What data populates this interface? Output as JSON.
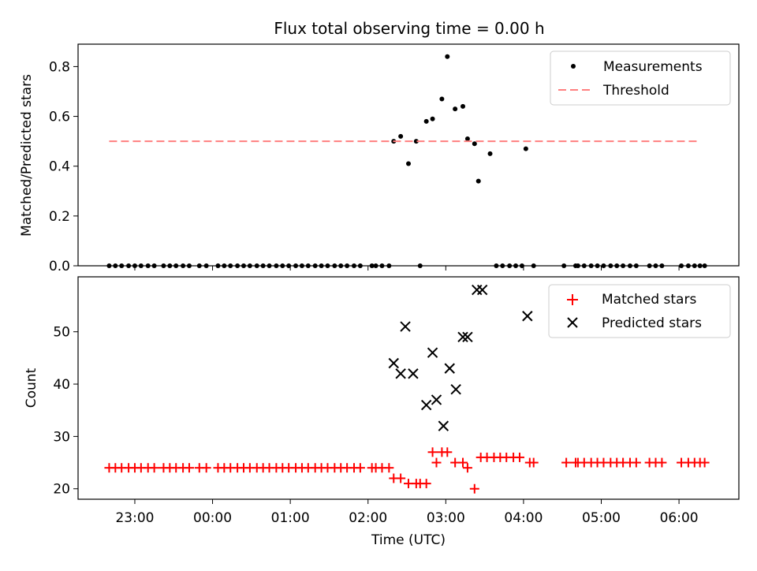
{
  "chart_data": {
    "title": "Flux total observing time = 0.00 h",
    "xlabel": "Time (UTC)",
    "x_tick_labels": [
      "23:00",
      "00:00",
      "01:00",
      "02:00",
      "03:00",
      "04:00",
      "05:00",
      "06:00"
    ],
    "x_tick_times_h": [
      23,
      24,
      25,
      26,
      27,
      28,
      29,
      30
    ],
    "xlim_h": [
      22.27,
      30.77
    ],
    "panels": [
      {
        "type": "scatter",
        "ylabel": "Matched/Predicted stars",
        "ylim": [
          0,
          0.89
        ],
        "y_ticks": [
          0.0,
          0.2,
          0.4,
          0.6,
          0.8
        ],
        "y_tick_labels": [
          "0.0",
          "0.2",
          "0.4",
          "0.6",
          "0.8"
        ],
        "legend": {
          "position": "top-right",
          "entries": [
            "Measurements",
            "Threshold"
          ]
        },
        "threshold": {
          "name": "Threshold",
          "value": 0.5,
          "x_range_h": [
            22.67,
            30.27
          ],
          "color": "#ff7f7f"
        },
        "series": [
          {
            "name": "Measurements",
            "color": "#000000",
            "x_h": [
              22.67,
              22.75,
              22.83,
              22.92,
              23.0,
              23.08,
              23.17,
              23.25,
              23.37,
              23.45,
              23.53,
              23.62,
              23.7,
              23.83,
              23.92,
              24.07,
              24.15,
              24.23,
              24.32,
              24.4,
              24.48,
              24.57,
              24.65,
              24.73,
              24.82,
              24.9,
              24.98,
              25.07,
              25.15,
              25.23,
              25.32,
              25.4,
              25.48,
              25.57,
              25.65,
              25.73,
              25.82,
              25.9,
              26.05,
              26.1,
              26.18,
              26.27,
              26.33,
              26.42,
              26.52,
              26.62,
              26.67,
              26.75,
              26.83,
              26.95,
              27.02,
              27.12,
              27.22,
              27.28,
              27.37,
              27.42,
              27.57,
              27.65,
              27.73,
              27.82,
              27.9,
              27.98,
              28.03,
              28.13,
              28.52,
              28.67,
              28.7,
              28.78,
              28.87,
              28.95,
              29.03,
              29.12,
              29.2,
              29.28,
              29.37,
              29.45,
              29.62,
              29.7,
              29.78,
              30.03,
              30.12,
              30.2,
              30.27,
              30.33
            ],
            "y": [
              0.0,
              0.0,
              0.0,
              0.0,
              0.0,
              0.0,
              0.0,
              0.0,
              0.0,
              0.0,
              0.0,
              0.0,
              0.0,
              0.0,
              0.0,
              0.0,
              0.0,
              0.0,
              0.0,
              0.0,
              0.0,
              0.0,
              0.0,
              0.0,
              0.0,
              0.0,
              0.0,
              0.0,
              0.0,
              0.0,
              0.0,
              0.0,
              0.0,
              0.0,
              0.0,
              0.0,
              0.0,
              0.0,
              0.0,
              0.0,
              0.0,
              0.0,
              0.5,
              0.52,
              0.41,
              0.5,
              0.0,
              0.58,
              0.59,
              0.67,
              0.84,
              0.63,
              0.64,
              0.51,
              0.49,
              0.34,
              0.45,
              0.0,
              0.0,
              0.0,
              0.0,
              0.0,
              0.47,
              0.0,
              0.0,
              0.0,
              0.0,
              0.0,
              0.0,
              0.0,
              0.0,
              0.0,
              0.0,
              0.0,
              0.0,
              0.0,
              0.0,
              0.0,
              0.0,
              0.0,
              0.0,
              0.0,
              0.0,
              0.0
            ]
          }
        ]
      },
      {
        "type": "scatter",
        "ylabel": "Count",
        "ylim": [
          18,
          60.5
        ],
        "y_ticks": [
          20,
          30,
          40,
          50
        ],
        "y_tick_labels": [
          "20",
          "30",
          "40",
          "50"
        ],
        "legend": {
          "position": "top-right",
          "entries": [
            "Matched stars",
            "Predicted stars"
          ]
        },
        "series": [
          {
            "name": "Matched stars",
            "marker": "plus",
            "color": "#ff0000",
            "x_h": [
              22.67,
              22.75,
              22.83,
              22.92,
              23.0,
              23.08,
              23.17,
              23.25,
              23.37,
              23.45,
              23.53,
              23.62,
              23.7,
              23.83,
              23.92,
              24.07,
              24.15,
              24.23,
              24.32,
              24.4,
              24.48,
              24.57,
              24.65,
              24.73,
              24.82,
              24.9,
              24.98,
              25.07,
              25.15,
              25.23,
              25.32,
              25.4,
              25.48,
              25.57,
              25.65,
              25.73,
              25.82,
              25.9,
              26.05,
              26.1,
              26.18,
              26.27,
              26.33,
              26.42,
              26.52,
              26.62,
              26.67,
              26.75,
              26.83,
              26.88,
              26.95,
              27.02,
              27.12,
              27.22,
              27.28,
              27.37,
              27.45,
              27.53,
              27.62,
              27.7,
              27.78,
              27.87,
              27.95,
              28.08,
              28.13,
              28.55,
              28.67,
              28.7,
              28.78,
              28.87,
              28.95,
              29.03,
              29.12,
              29.2,
              29.28,
              29.37,
              29.45,
              29.62,
              29.7,
              29.78,
              30.03,
              30.12,
              30.2,
              30.27,
              30.33
            ],
            "y": [
              24,
              24,
              24,
              24,
              24,
              24,
              24,
              24,
              24,
              24,
              24,
              24,
              24,
              24,
              24,
              24,
              24,
              24,
              24,
              24,
              24,
              24,
              24,
              24,
              24,
              24,
              24,
              24,
              24,
              24,
              24,
              24,
              24,
              24,
              24,
              24,
              24,
              24,
              24,
              24,
              24,
              24,
              22,
              22,
              21,
              21,
              21,
              21,
              27,
              25,
              27,
              27,
              25,
              25,
              24,
              20,
              26,
              26,
              26,
              26,
              26,
              26,
              26,
              25,
              25,
              25,
              25,
              25,
              25,
              25,
              25,
              25,
              25,
              25,
              25,
              25,
              25,
              25,
              25,
              25,
              25,
              25,
              25,
              25,
              25
            ]
          },
          {
            "name": "Predicted stars",
            "marker": "x",
            "color": "#000000",
            "x_h": [
              26.33,
              26.42,
              26.48,
              26.58,
              26.75,
              26.83,
              26.88,
              26.97,
              27.05,
              27.13,
              27.22,
              27.28,
              27.4,
              27.47,
              28.05
            ],
            "y": [
              44,
              42,
              51,
              42,
              36,
              46,
              37,
              32,
              43,
              39,
              49,
              49,
              58,
              58,
              53
            ]
          }
        ]
      }
    ]
  }
}
